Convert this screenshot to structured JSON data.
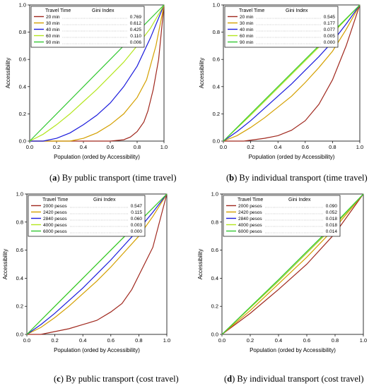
{
  "legend_header": {
    "col1": "Travel Time",
    "col2": "Gini Index"
  },
  "legend_header_cost": {
    "col1": "Travel Time",
    "col2": "Gini Index"
  },
  "colors": {
    "s1": "#a0281e",
    "s2": "#d4a000",
    "s3": "#1a1adc",
    "s4": "#b4e61e",
    "s5": "#32c832"
  },
  "captions": [
    {
      "letter": "a",
      "text": "By public transport (time travel)"
    },
    {
      "letter": "b",
      "text": "By individual transport (time travel)"
    },
    {
      "letter": "c",
      "text": "By public transport (cost travel)"
    },
    {
      "letter": "d",
      "text": "By individual transport (cost travel)"
    }
  ],
  "chart_data": [
    {
      "type": "line",
      "xlabel": "Population (orded by Accessibility)",
      "ylabel": "Accessibility",
      "xlim": [
        0,
        1
      ],
      "ylim": [
        0,
        1
      ],
      "xticks": [
        "0.0",
        "0.2",
        "0.4",
        "0.6",
        "0.8",
        "1.0"
      ],
      "yticks": [
        "0.0",
        "0.2",
        "0.4",
        "0.6",
        "0.8",
        "1.0"
      ],
      "legend_position": "top-left",
      "series": [
        {
          "name": "20 min",
          "gini": "0.769",
          "x": [
            0,
            0.6,
            0.7,
            0.75,
            0.8,
            0.85,
            0.88,
            0.92,
            0.96,
            1.0
          ],
          "y": [
            0,
            0,
            0.01,
            0.03,
            0.07,
            0.14,
            0.22,
            0.38,
            0.6,
            1.0
          ]
        },
        {
          "name": "30 min",
          "gini": "0.612",
          "x": [
            0,
            0.3,
            0.4,
            0.5,
            0.6,
            0.7,
            0.8,
            0.87,
            0.94,
            1.0
          ],
          "y": [
            0,
            0,
            0.02,
            0.06,
            0.12,
            0.2,
            0.32,
            0.45,
            0.7,
            1.0
          ]
        },
        {
          "name": "40 min",
          "gini": "0.425",
          "x": [
            0,
            0.1,
            0.2,
            0.3,
            0.4,
            0.5,
            0.6,
            0.7,
            0.8,
            0.9,
            1.0
          ],
          "y": [
            0,
            0,
            0.02,
            0.06,
            0.12,
            0.19,
            0.28,
            0.4,
            0.55,
            0.76,
            1.0
          ]
        },
        {
          "name": "60 min",
          "gini": "0.110",
          "x": [
            0,
            0.1,
            0.2,
            0.3,
            0.4,
            0.5,
            0.6,
            0.7,
            0.8,
            0.9,
            1.0
          ],
          "y": [
            0,
            0.05,
            0.12,
            0.2,
            0.29,
            0.38,
            0.48,
            0.58,
            0.7,
            0.83,
            1.0
          ]
        },
        {
          "name": "90 min",
          "gini": "0.006",
          "x": [
            0,
            0.2,
            0.4,
            0.6,
            0.8,
            1.0
          ],
          "y": [
            0,
            0.2,
            0.4,
            0.6,
            0.8,
            1.0
          ]
        }
      ]
    },
    {
      "type": "line",
      "xlabel": "Population (orded by Accessibility)",
      "ylabel": "Accessibility",
      "xlim": [
        0,
        1
      ],
      "ylim": [
        0,
        1
      ],
      "xticks": [
        "0.0",
        "0.2",
        "0.4",
        "0.6",
        "0.8",
        "1.0"
      ],
      "yticks": [
        "0.0",
        "0.2",
        "0.4",
        "0.6",
        "0.8",
        "1.0"
      ],
      "legend_position": "top-left",
      "series": [
        {
          "name": "20 min",
          "gini": "0.545",
          "x": [
            0,
            0.15,
            0.3,
            0.4,
            0.5,
            0.6,
            0.7,
            0.8,
            0.9,
            1.0
          ],
          "y": [
            0,
            0,
            0.02,
            0.04,
            0.08,
            0.15,
            0.27,
            0.45,
            0.7,
            1.0
          ]
        },
        {
          "name": "30 min",
          "gini": "0.177",
          "x": [
            0,
            0.1,
            0.2,
            0.3,
            0.4,
            0.5,
            0.6,
            0.7,
            0.8,
            0.9,
            1.0
          ],
          "y": [
            0,
            0.04,
            0.1,
            0.17,
            0.25,
            0.33,
            0.43,
            0.54,
            0.66,
            0.82,
            1.0
          ]
        },
        {
          "name": "40 min",
          "gini": "0.077",
          "x": [
            0,
            0.1,
            0.2,
            0.3,
            0.4,
            0.5,
            0.6,
            0.7,
            0.8,
            0.9,
            1.0
          ],
          "y": [
            0,
            0.07,
            0.15,
            0.24,
            0.33,
            0.42,
            0.52,
            0.62,
            0.73,
            0.86,
            1.0
          ]
        },
        {
          "name": "60 min",
          "gini": "0.005",
          "x": [
            0,
            0.2,
            0.4,
            0.6,
            0.8,
            1.0
          ],
          "y": [
            0,
            0.19,
            0.39,
            0.59,
            0.79,
            1.0
          ]
        },
        {
          "name": "90 min",
          "gini": "0.000",
          "x": [
            0,
            0.2,
            0.4,
            0.6,
            0.8,
            1.0
          ],
          "y": [
            0,
            0.2,
            0.4,
            0.6,
            0.8,
            1.0
          ]
        }
      ]
    },
    {
      "type": "line",
      "xlabel": "Population (orded by Accessibility)",
      "ylabel": "Accessibility",
      "xlim": [
        0,
        1
      ],
      "ylim": [
        0,
        1
      ],
      "xticks": [
        "0.0",
        "0.2",
        "0.4",
        "0.6",
        "0.8",
        "1.0"
      ],
      "yticks": [
        "0.0",
        "0.2",
        "0.4",
        "0.6",
        "0.8",
        "1.0"
      ],
      "legend_position": "top-left",
      "series": [
        {
          "name": "2000 pesos",
          "gini": "0.547",
          "x": [
            0,
            0.1,
            0.2,
            0.3,
            0.4,
            0.5,
            0.6,
            0.68,
            0.75,
            0.8,
            0.9,
            1.0
          ],
          "y": [
            0,
            0,
            0.02,
            0.04,
            0.07,
            0.1,
            0.16,
            0.22,
            0.32,
            0.42,
            0.62,
            1.0
          ]
        },
        {
          "name": "2420 pesos",
          "gini": "0.115",
          "x": [
            0,
            0.1,
            0.2,
            0.3,
            0.4,
            0.5,
            0.6,
            0.7,
            0.8,
            0.9,
            1.0
          ],
          "y": [
            0,
            0.05,
            0.12,
            0.2,
            0.29,
            0.38,
            0.48,
            0.59,
            0.7,
            0.84,
            1.0
          ]
        },
        {
          "name": "2840 pesos",
          "gini": "0.060",
          "x": [
            0,
            0.1,
            0.2,
            0.3,
            0.4,
            0.5,
            0.6,
            0.7,
            0.8,
            0.9,
            1.0
          ],
          "y": [
            0,
            0.07,
            0.15,
            0.24,
            0.33,
            0.43,
            0.53,
            0.64,
            0.75,
            0.87,
            1.0
          ]
        },
        {
          "name": "4000 pesos",
          "gini": "0.003",
          "x": [
            0,
            0.2,
            0.4,
            0.6,
            0.8,
            1.0
          ],
          "y": [
            0,
            0.2,
            0.4,
            0.6,
            0.8,
            1.0
          ]
        },
        {
          "name": "6000 pesos",
          "gini": "0.000",
          "x": [
            0,
            0.2,
            0.4,
            0.6,
            0.8,
            1.0
          ],
          "y": [
            0,
            0.2,
            0.4,
            0.6,
            0.8,
            1.0
          ]
        }
      ]
    },
    {
      "type": "line",
      "xlabel": "Population (orded by Accessibility)",
      "ylabel": "Accessibility",
      "xlim": [
        0,
        1
      ],
      "ylim": [
        0,
        1
      ],
      "xticks": [
        "0.0",
        "0.2",
        "0.4",
        "0.6",
        "0.8",
        "1.0"
      ],
      "yticks": [
        "0.0",
        "0.2",
        "0.4",
        "0.6",
        "0.8",
        "1.0"
      ],
      "legend_position": "top-left",
      "series": [
        {
          "name": "2000 pesos",
          "gini": "0.090",
          "x": [
            0,
            0.2,
            0.4,
            0.6,
            0.8,
            1.0
          ],
          "y": [
            0,
            0.15,
            0.32,
            0.5,
            0.72,
            1.0
          ]
        },
        {
          "name": "2420 pesos",
          "gini": "0.052",
          "x": [
            0,
            0.2,
            0.4,
            0.6,
            0.8,
            1.0
          ],
          "y": [
            0,
            0.17,
            0.36,
            0.55,
            0.76,
            1.0
          ]
        },
        {
          "name": "2840 pesos",
          "gini": "0.018",
          "x": [
            0,
            0.2,
            0.4,
            0.6,
            0.8,
            1.0
          ],
          "y": [
            0,
            0.19,
            0.38,
            0.58,
            0.78,
            1.0
          ]
        },
        {
          "name": "4000 pesos",
          "gini": "0.018",
          "x": [
            0,
            0.2,
            0.4,
            0.6,
            0.8,
            1.0
          ],
          "y": [
            0,
            0.19,
            0.38,
            0.58,
            0.78,
            1.0
          ]
        },
        {
          "name": "6000 pesos",
          "gini": "0.014",
          "x": [
            0,
            0.2,
            0.4,
            0.6,
            0.8,
            1.0
          ],
          "y": [
            0,
            0.195,
            0.39,
            0.59,
            0.79,
            1.0
          ]
        }
      ]
    }
  ]
}
